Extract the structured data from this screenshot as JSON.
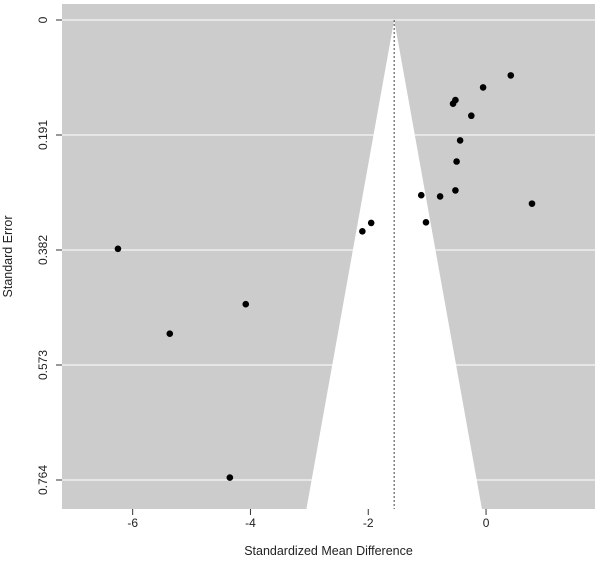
{
  "chart_data": {
    "type": "scatter",
    "subtype": "funnel-plot",
    "title": "",
    "xlabel": "Standardized Mean Difference",
    "ylabel": "Standard Error",
    "xlim": [
      -7.2,
      1.85
    ],
    "ylim": [
      0.764,
      0
    ],
    "y_reversed": true,
    "x_ticks": [
      -6,
      -4,
      -2,
      0
    ],
    "x_tick_labels": [
      "-6",
      "-4",
      "-2",
      "0"
    ],
    "y_ticks": [
      0,
      0.191,
      0.382,
      0.573,
      0.764
    ],
    "y_tick_labels": [
      "0",
      "0.191",
      "0.382",
      "0.573",
      "0.764"
    ],
    "grid": true,
    "background_color": "#cccccc",
    "funnel_color": "#ffffff",
    "point_color": "#000000",
    "pooled_estimate": -1.56,
    "funnel_base": [
      -3.05,
      -0.07
    ],
    "points": [
      {
        "x": 0.42,
        "y": 0.092
      },
      {
        "x": -0.05,
        "y": 0.112
      },
      {
        "x": -0.52,
        "y": 0.133
      },
      {
        "x": -0.56,
        "y": 0.139
      },
      {
        "x": -0.25,
        "y": 0.159
      },
      {
        "x": -0.44,
        "y": 0.2
      },
      {
        "x": -0.5,
        "y": 0.235
      },
      {
        "x": -0.52,
        "y": 0.283
      },
      {
        "x": -0.78,
        "y": 0.293
      },
      {
        "x": -1.1,
        "y": 0.291
      },
      {
        "x": 0.78,
        "y": 0.305
      },
      {
        "x": -1.02,
        "y": 0.336
      },
      {
        "x": -1.95,
        "y": 0.337
      },
      {
        "x": -2.1,
        "y": 0.351
      },
      {
        "x": -6.25,
        "y": 0.38
      },
      {
        "x": -4.08,
        "y": 0.472
      },
      {
        "x": -5.37,
        "y": 0.521
      },
      {
        "x": -4.35,
        "y": 0.76
      }
    ]
  }
}
